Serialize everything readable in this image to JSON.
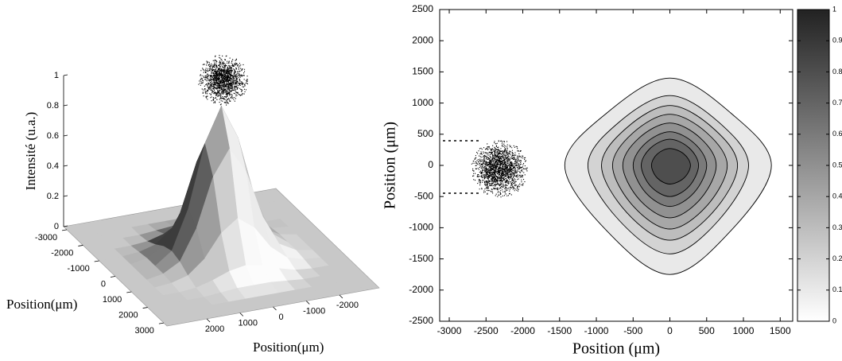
{
  "chart_data": [
    {
      "type": "surface",
      "xlabel": "Position(μm)",
      "ylabel": "Position(μm)",
      "zlabel": "Intensité (u.a.)",
      "x": [
        -3000,
        -2500,
        -2000,
        -1500,
        -1000,
        -500,
        0,
        500,
        1000,
        1500,
        2000,
        2500,
        3000
      ],
      "y": [
        -3000,
        -2500,
        -2000,
        -1500,
        -1000,
        -500,
        0,
        500,
        1000,
        1500,
        2000,
        2500,
        3000
      ],
      "z": [
        [
          0,
          0,
          0,
          0,
          0,
          0,
          0,
          0,
          0,
          0,
          0,
          0,
          0
        ],
        [
          0,
          0,
          0,
          0,
          0,
          0,
          0,
          0,
          0,
          0,
          0,
          0,
          0
        ],
        [
          0,
          0,
          0,
          0,
          0.01,
          0.02,
          0.02,
          0.02,
          0.01,
          0,
          0,
          0,
          0
        ],
        [
          0,
          0,
          0,
          0.01,
          0.04,
          0.08,
          0.1,
          0.08,
          0.04,
          0.01,
          0,
          0,
          0
        ],
        [
          0,
          0,
          0.01,
          0.04,
          0.13,
          0.28,
          0.36,
          0.28,
          0.13,
          0.04,
          0.01,
          0,
          0
        ],
        [
          0,
          0,
          0.02,
          0.08,
          0.28,
          0.6,
          0.77,
          0.6,
          0.28,
          0.08,
          0.02,
          0,
          0
        ],
        [
          0,
          0,
          0.02,
          0.1,
          0.36,
          0.77,
          1,
          0.77,
          0.36,
          0.1,
          0.02,
          0,
          0
        ],
        [
          0,
          0,
          0.02,
          0.08,
          0.28,
          0.6,
          0.77,
          0.6,
          0.28,
          0.08,
          0.02,
          0,
          0
        ],
        [
          0,
          0,
          0.01,
          0.04,
          0.13,
          0.28,
          0.36,
          0.28,
          0.13,
          0.04,
          0.01,
          0,
          0
        ],
        [
          0,
          0,
          0,
          0.01,
          0.04,
          0.08,
          0.1,
          0.08,
          0.04,
          0.01,
          0,
          0,
          0
        ],
        [
          0,
          0,
          0,
          0,
          0.01,
          0.02,
          0.02,
          0.02,
          0.01,
          0,
          0,
          0,
          0
        ],
        [
          0,
          0,
          0,
          0,
          0,
          0,
          0,
          0,
          0,
          0,
          0,
          0,
          0
        ],
        [
          0,
          0,
          0,
          0,
          0,
          0,
          0,
          0,
          0,
          0,
          0,
          0,
          0
        ]
      ],
      "xlim": [
        -3200,
        3200
      ],
      "ylim": [
        -3200,
        3200
      ],
      "zlim": [
        0,
        1
      ],
      "xticks": [
        -3000,
        -2000,
        -1000,
        0,
        1000,
        2000,
        3000
      ],
      "yticks": [
        2000,
        1000,
        0,
        -1000,
        -2000
      ],
      "zticks": [
        0,
        0.2,
        0.4,
        0.6,
        0.8,
        1
      ],
      "color": "#c8c8c8"
    },
    {
      "type": "contour",
      "xlabel": "Position (μm)",
      "ylabel": "Position (μm)",
      "xlim": [
        -3130,
        1670
      ],
      "ylim": [
        -2500,
        2500
      ],
      "xticks": [
        -3000,
        -2500,
        -2000,
        -1500,
        -1000,
        -500,
        0,
        500,
        1000,
        1500
      ],
      "yticks": [
        2500,
        2000,
        1500,
        1000,
        500,
        0,
        -500,
        -1000,
        -1500,
        -2000,
        -2500
      ],
      "contours": [
        {
          "level": 0.1,
          "x": [
            1380,
            828,
            0,
            -858,
            -1430,
            -858,
            0,
            828
          ],
          "y": [
            0,
            840,
            1400,
            840,
            0,
            -1050,
            -1750,
            -1050
          ]
        },
        {
          "level": 0.2,
          "x": [
            1070,
            663,
            0,
            -691,
            -1115,
            -691,
            0,
            663
          ],
          "y": [
            0,
            694,
            1120,
            694,
            0,
            -880,
            -1420,
            -880
          ]
        },
        {
          "level": 0.3,
          "x": [
            920,
            580,
            0,
            -586,
            -930,
            -586,
            0,
            580
          ],
          "y": [
            0,
            605,
            960,
            605,
            0,
            -756,
            -1200,
            -756
          ]
        },
        {
          "level": 0.4,
          "x": [
            780,
            499,
            0,
            -499,
            -780,
            -499,
            0,
            499
          ],
          "y": [
            0,
            525,
            820,
            525,
            0,
            -653,
            -1020,
            -653
          ]
        },
        {
          "level": 0.5,
          "x": [
            630,
            410,
            0,
            -416,
            -640,
            -416,
            0,
            410
          ],
          "y": [
            0,
            442,
            680,
            442,
            0,
            -546,
            -840,
            -546
          ]
        },
        {
          "level": 0.6,
          "x": [
            500,
            330,
            0,
            -330,
            -500,
            -330,
            0,
            330
          ],
          "y": [
            0,
            356,
            540,
            356,
            0,
            -436,
            -660,
            -436
          ]
        },
        {
          "level": 0.7,
          "x": [
            390,
            261,
            0,
            -261,
            -390,
            -261,
            0,
            261
          ],
          "y": [
            0,
            281,
            420,
            281,
            0,
            -335,
            -500,
            -335
          ]
        },
        {
          "level": 0.8,
          "x": [
            280,
            190,
            0,
            -170,
            -250,
            -170,
            0,
            190
          ],
          "y": [
            0,
            184,
            270,
            184,
            0,
            -204,
            -300,
            -204
          ]
        }
      ],
      "colormap": [
        "#ffffff",
        "#222222"
      ],
      "clim": [
        0,
        1
      ],
      "cticks": [
        0,
        0.1,
        0.2,
        0.3,
        0.4,
        0.5,
        0.6,
        0.7,
        0.8,
        0.9,
        1
      ]
    }
  ]
}
